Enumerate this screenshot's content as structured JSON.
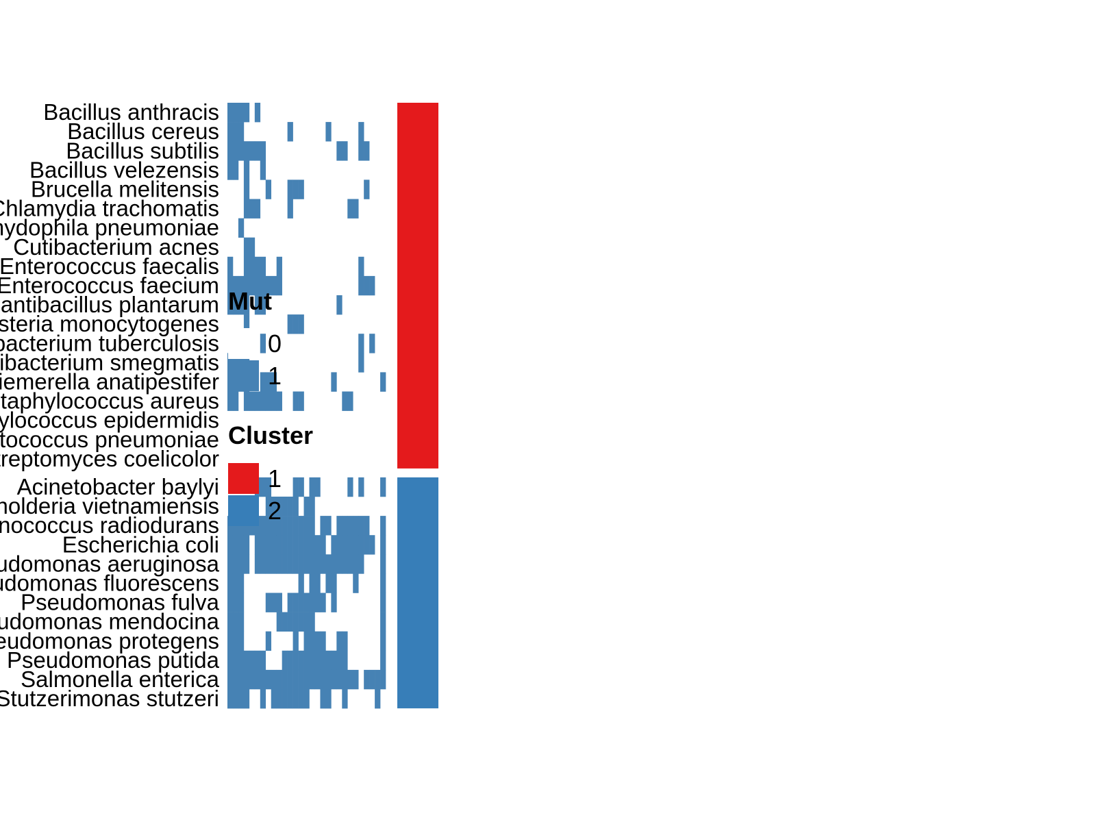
{
  "chart_data": {
    "type": "heatmap",
    "title": "",
    "xlabel": "",
    "ylabel": "",
    "rows": [
      "Bacillus anthracis",
      "Bacillus cereus",
      "Bacillus subtilis",
      "Bacillus velezensis",
      "Brucella melitensis",
      "Chlamydia trachomatis",
      "Chlamydophila pneumoniae",
      "Cutibacterium acnes",
      "Enterococcus faecalis",
      "Enterococcus faecium",
      "Lactiplantibacillus plantarum",
      "Listeria monocytogenes",
      "Mycobacterium tuberculosis",
      "Mycolicibacterium smegmatis",
      "Riemerella anatipestifer",
      "Staphylococcus aureus",
      "Staphylococcus epidermidis",
      "Streptococcus pneumoniae",
      "Streptomyces coelicolor",
      "Acinetobacter baylyi",
      "Burkholderia vietnamiensis",
      "Deinococcus radiodurans",
      "Escherichia coli",
      "Pseudomonas aeruginosa",
      "Pseudomonas fluorescens",
      "Pseudomonas fulva",
      "Pseudomonas mendocina",
      "Pseudomonas protegens",
      "Pseudomonas putida",
      "Salmonella enterica",
      "Stutzerimonas stutzeri"
    ],
    "columns": [
      "",
      "",
      "",
      "",
      "",
      "",
      "",
      "",
      "",
      "",
      "",
      "",
      "",
      "",
      "",
      "",
      "",
      "",
      "",
      "",
      "",
      "",
      "",
      "",
      "",
      "",
      "",
      "",
      "",
      ""
    ],
    "values": [
      [
        1,
        1,
        1,
        1,
        0,
        1,
        0,
        0,
        0,
        0,
        0,
        0,
        0,
        0,
        0,
        0,
        0,
        0,
        0,
        0,
        0,
        0,
        0,
        0,
        0,
        0,
        0,
        0,
        0,
        0
      ],
      [
        1,
        1,
        1,
        0,
        0,
        0,
        0,
        0,
        0,
        0,
        0,
        1,
        0,
        0,
        0,
        0,
        0,
        0,
        1,
        0,
        0,
        0,
        0,
        0,
        1,
        0,
        0,
        0,
        0,
        0
      ],
      [
        1,
        1,
        1,
        1,
        1,
        1,
        1,
        0,
        0,
        0,
        0,
        0,
        0,
        0,
        0,
        0,
        0,
        0,
        0,
        0,
        1,
        1,
        0,
        0,
        1,
        1,
        0,
        0,
        0,
        0
      ],
      [
        1,
        1,
        0,
        1,
        0,
        0,
        1,
        0,
        0,
        0,
        0,
        0,
        0,
        0,
        0,
        0,
        0,
        0,
        0,
        0,
        0,
        0,
        0,
        0,
        0,
        0,
        0,
        0,
        0,
        0
      ],
      [
        0,
        0,
        0,
        1,
        0,
        0,
        0,
        1,
        0,
        0,
        0,
        1,
        1,
        1,
        0,
        0,
        0,
        0,
        0,
        0,
        0,
        0,
        0,
        0,
        0,
        1,
        0,
        0,
        0,
        0
      ],
      [
        0,
        0,
        0,
        1,
        1,
        1,
        0,
        0,
        0,
        0,
        0,
        1,
        0,
        0,
        0,
        0,
        0,
        0,
        0,
        0,
        0,
        0,
        1,
        1,
        0,
        0,
        0,
        0,
        0,
        0
      ],
      [
        0,
        0,
        1,
        0,
        0,
        0,
        0,
        0,
        0,
        0,
        0,
        0,
        0,
        0,
        0,
        0,
        0,
        0,
        0,
        0,
        0,
        0,
        0,
        0,
        0,
        0,
        0,
        0,
        0,
        0
      ],
      [
        0,
        0,
        0,
        1,
        1,
        0,
        0,
        0,
        0,
        0,
        0,
        0,
        0,
        0,
        0,
        0,
        0,
        0,
        0,
        0,
        0,
        0,
        0,
        0,
        0,
        0,
        0,
        0,
        0,
        0
      ],
      [
        1,
        0,
        0,
        1,
        1,
        1,
        1,
        0,
        0,
        1,
        0,
        0,
        0,
        0,
        0,
        0,
        0,
        0,
        0,
        0,
        0,
        0,
        0,
        0,
        1,
        0,
        0,
        0,
        0,
        0
      ],
      [
        1,
        1,
        1,
        1,
        1,
        1,
        1,
        1,
        1,
        1,
        0,
        0,
        0,
        0,
        0,
        0,
        0,
        0,
        0,
        0,
        0,
        0,
        0,
        0,
        1,
        1,
        1,
        0,
        0,
        0
      ],
      [
        1,
        1,
        1,
        1,
        0,
        1,
        1,
        0,
        0,
        0,
        0,
        0,
        0,
        0,
        0,
        0,
        0,
        0,
        0,
        0,
        1,
        0,
        0,
        0,
        0,
        0,
        0,
        0,
        0,
        0
      ],
      [
        0,
        0,
        0,
        1,
        0,
        0,
        0,
        0,
        0,
        0,
        0,
        1,
        1,
        1,
        0,
        0,
        0,
        0,
        0,
        0,
        0,
        0,
        0,
        0,
        0,
        0,
        0,
        0,
        0,
        0
      ],
      [
        0,
        0,
        0,
        0,
        0,
        0,
        1,
        0,
        0,
        0,
        0,
        0,
        0,
        0,
        0,
        0,
        0,
        0,
        0,
        0,
        0,
        0,
        0,
        0,
        1,
        0,
        1,
        0,
        0,
        0
      ],
      [
        1,
        1,
        1,
        1,
        0,
        0,
        0,
        0,
        0,
        0,
        0,
        0,
        0,
        0,
        0,
        0,
        0,
        0,
        0,
        0,
        0,
        0,
        0,
        0,
        1,
        0,
        0,
        0,
        0,
        0
      ],
      [
        1,
        1,
        1,
        1,
        0,
        0,
        1,
        1,
        1,
        0,
        0,
        0,
        0,
        0,
        0,
        0,
        0,
        0,
        0,
        1,
        0,
        0,
        0,
        0,
        0,
        0,
        0,
        0,
        1,
        0
      ],
      [
        1,
        1,
        0,
        1,
        1,
        1,
        1,
        1,
        1,
        1,
        0,
        0,
        1,
        1,
        0,
        0,
        0,
        0,
        0,
        0,
        0,
        1,
        1,
        0,
        0,
        0,
        0,
        0,
        0,
        0
      ],
      [
        0,
        0,
        0,
        0,
        0,
        0,
        0,
        0,
        0,
        0,
        0,
        0,
        0,
        0,
        0,
        0,
        0,
        0,
        0,
        0,
        0,
        0,
        0,
        0,
        0,
        0,
        0,
        0,
        0,
        0
      ],
      [
        0,
        0,
        0,
        0,
        0,
        0,
        0,
        0,
        0,
        0,
        0,
        0,
        0,
        0,
        0,
        0,
        0,
        0,
        0,
        0,
        0,
        0,
        0,
        0,
        0,
        0,
        0,
        0,
        0,
        0
      ],
      [
        0,
        0,
        0,
        0,
        0,
        0,
        0,
        0,
        0,
        0,
        0,
        0,
        0,
        0,
        0,
        0,
        0,
        0,
        0,
        0,
        0,
        0,
        0,
        0,
        0,
        0,
        0,
        0,
        0,
        0
      ],
      [
        0,
        0,
        0,
        0,
        0,
        1,
        1,
        1,
        0,
        0,
        0,
        0,
        1,
        1,
        0,
        1,
        1,
        0,
        0,
        0,
        0,
        0,
        1,
        0,
        1,
        0,
        0,
        0,
        1,
        0
      ],
      [
        0,
        0,
        0,
        0,
        0,
        0,
        0,
        1,
        1,
        1,
        1,
        1,
        1,
        0,
        1,
        1,
        0,
        0,
        0,
        0,
        0,
        0,
        0,
        0,
        0,
        0,
        0,
        0,
        0,
        0
      ],
      [
        1,
        1,
        1,
        1,
        1,
        1,
        1,
        1,
        1,
        1,
        1,
        1,
        1,
        1,
        1,
        1,
        0,
        1,
        1,
        0,
        1,
        1,
        1,
        1,
        1,
        1,
        0,
        0,
        1,
        0
      ],
      [
        1,
        1,
        1,
        1,
        0,
        1,
        1,
        1,
        1,
        1,
        1,
        1,
        1,
        1,
        1,
        1,
        1,
        1,
        0,
        1,
        1,
        1,
        1,
        1,
        1,
        1,
        1,
        0,
        1,
        0
      ],
      [
        1,
        1,
        1,
        1,
        0,
        1,
        1,
        1,
        1,
        1,
        1,
        1,
        1,
        1,
        1,
        1,
        1,
        1,
        1,
        1,
        1,
        1,
        1,
        1,
        1,
        0,
        0,
        0,
        1,
        0
      ],
      [
        1,
        1,
        1,
        0,
        0,
        0,
        0,
        0,
        0,
        0,
        0,
        0,
        0,
        1,
        0,
        1,
        1,
        0,
        1,
        1,
        0,
        0,
        0,
        1,
        0,
        0,
        0,
        0,
        1,
        0
      ],
      [
        1,
        1,
        1,
        0,
        0,
        0,
        0,
        1,
        1,
        1,
        0,
        1,
        1,
        1,
        1,
        1,
        1,
        1,
        0,
        1,
        0,
        0,
        0,
        0,
        0,
        0,
        0,
        0,
        1,
        0
      ],
      [
        1,
        1,
        1,
        0,
        0,
        0,
        0,
        0,
        0,
        1,
        1,
        1,
        1,
        1,
        1,
        1,
        0,
        0,
        0,
        0,
        0,
        0,
        0,
        0,
        0,
        0,
        0,
        0,
        1,
        0
      ],
      [
        1,
        1,
        1,
        0,
        0,
        0,
        0,
        1,
        0,
        0,
        0,
        0,
        1,
        0,
        1,
        1,
        1,
        1,
        0,
        0,
        1,
        1,
        0,
        0,
        0,
        0,
        0,
        0,
        1,
        0
      ],
      [
        1,
        1,
        1,
        1,
        1,
        1,
        1,
        0,
        0,
        0,
        1,
        1,
        1,
        1,
        1,
        1,
        1,
        1,
        1,
        1,
        1,
        1,
        0,
        0,
        0,
        0,
        0,
        0,
        1,
        0
      ],
      [
        1,
        1,
        1,
        1,
        1,
        1,
        1,
        1,
        1,
        1,
        1,
        1,
        1,
        1,
        1,
        1,
        1,
        1,
        1,
        1,
        1,
        1,
        1,
        1,
        0,
        1,
        1,
        1,
        1,
        0
      ],
      [
        1,
        1,
        1,
        1,
        0,
        0,
        1,
        0,
        1,
        1,
        1,
        1,
        1,
        1,
        1,
        0,
        0,
        1,
        1,
        0,
        0,
        1,
        0,
        0,
        0,
        0,
        0,
        1,
        0,
        0
      ]
    ],
    "cluster": [
      1,
      1,
      1,
      1,
      1,
      1,
      1,
      1,
      1,
      1,
      1,
      1,
      1,
      1,
      1,
      1,
      1,
      1,
      1,
      2,
      2,
      2,
      2,
      2,
      2,
      2,
      2,
      2,
      2,
      2,
      2
    ],
    "legends": [
      {
        "title": "Mut",
        "entries": [
          {
            "label": "0",
            "color": "#FFFFFF"
          },
          {
            "label": "1",
            "color": "#4682B4"
          }
        ]
      },
      {
        "title": "Cluster",
        "entries": [
          {
            "label": "1",
            "color": "#E41A1C"
          },
          {
            "label": "2",
            "color": "#377EB8"
          }
        ]
      }
    ],
    "grid": false,
    "legend_position": "overlapping heatmap, center-left"
  }
}
